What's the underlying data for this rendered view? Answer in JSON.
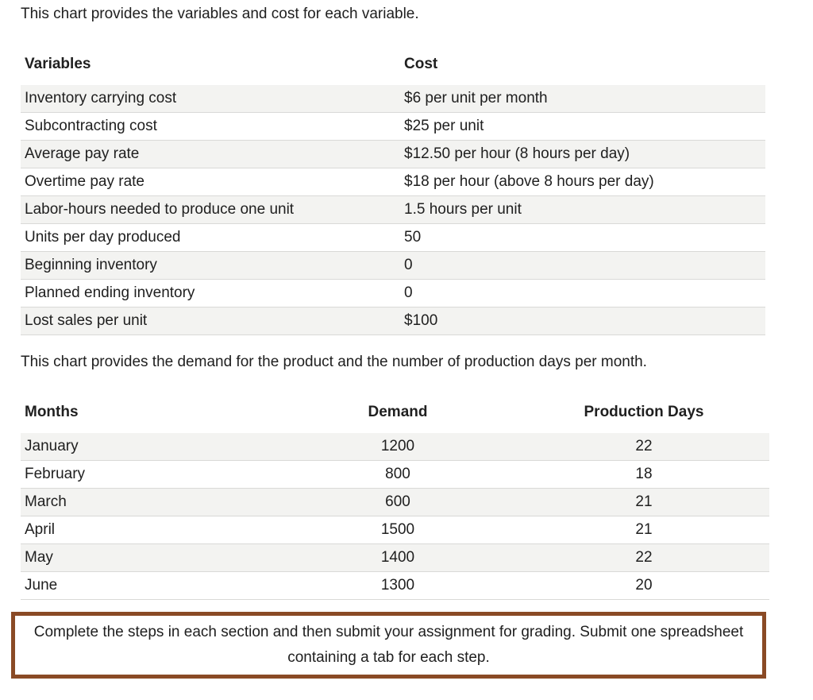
{
  "intro1": "This chart provides the variables and cost for each variable.",
  "variables_table": {
    "headers": [
      "Variables",
      "Cost"
    ],
    "rows": [
      [
        "Inventory carrying cost",
        "$6 per unit per month"
      ],
      [
        "Subcontracting cost",
        "$25 per unit"
      ],
      [
        "Average pay rate",
        "$12.50 per hour (8 hours per day)"
      ],
      [
        "Overtime pay rate",
        "$18 per hour (above 8 hours per day)"
      ],
      [
        "Labor-hours needed to produce one unit",
        "1.5 hours per unit"
      ],
      [
        "Units per day produced",
        "50"
      ],
      [
        "Beginning inventory",
        "0"
      ],
      [
        "Planned ending inventory",
        "0"
      ],
      [
        "Lost sales per unit",
        "$100"
      ]
    ]
  },
  "intro2": "This chart provides the demand for the product and the number of production days per month.",
  "demand_table": {
    "headers": [
      "Months",
      "Demand",
      "Production Days"
    ],
    "rows": [
      [
        "January",
        "1200",
        "22"
      ],
      [
        "February",
        "800",
        "18"
      ],
      [
        "March",
        "600",
        "21"
      ],
      [
        "April",
        "1500",
        "21"
      ],
      [
        "May",
        "1400",
        "22"
      ],
      [
        "June",
        "1300",
        "20"
      ]
    ]
  },
  "note": "Complete the steps in each section and then submit your assignment for grading. Submit one spreadsheet containing a tab for each step.",
  "colors": {
    "text": "#202020",
    "row_stripe": "#f3f3f1",
    "row_divider": "#d9d9d7",
    "header_underline": "#a3a3a1",
    "note_border": "#8a4a25"
  }
}
